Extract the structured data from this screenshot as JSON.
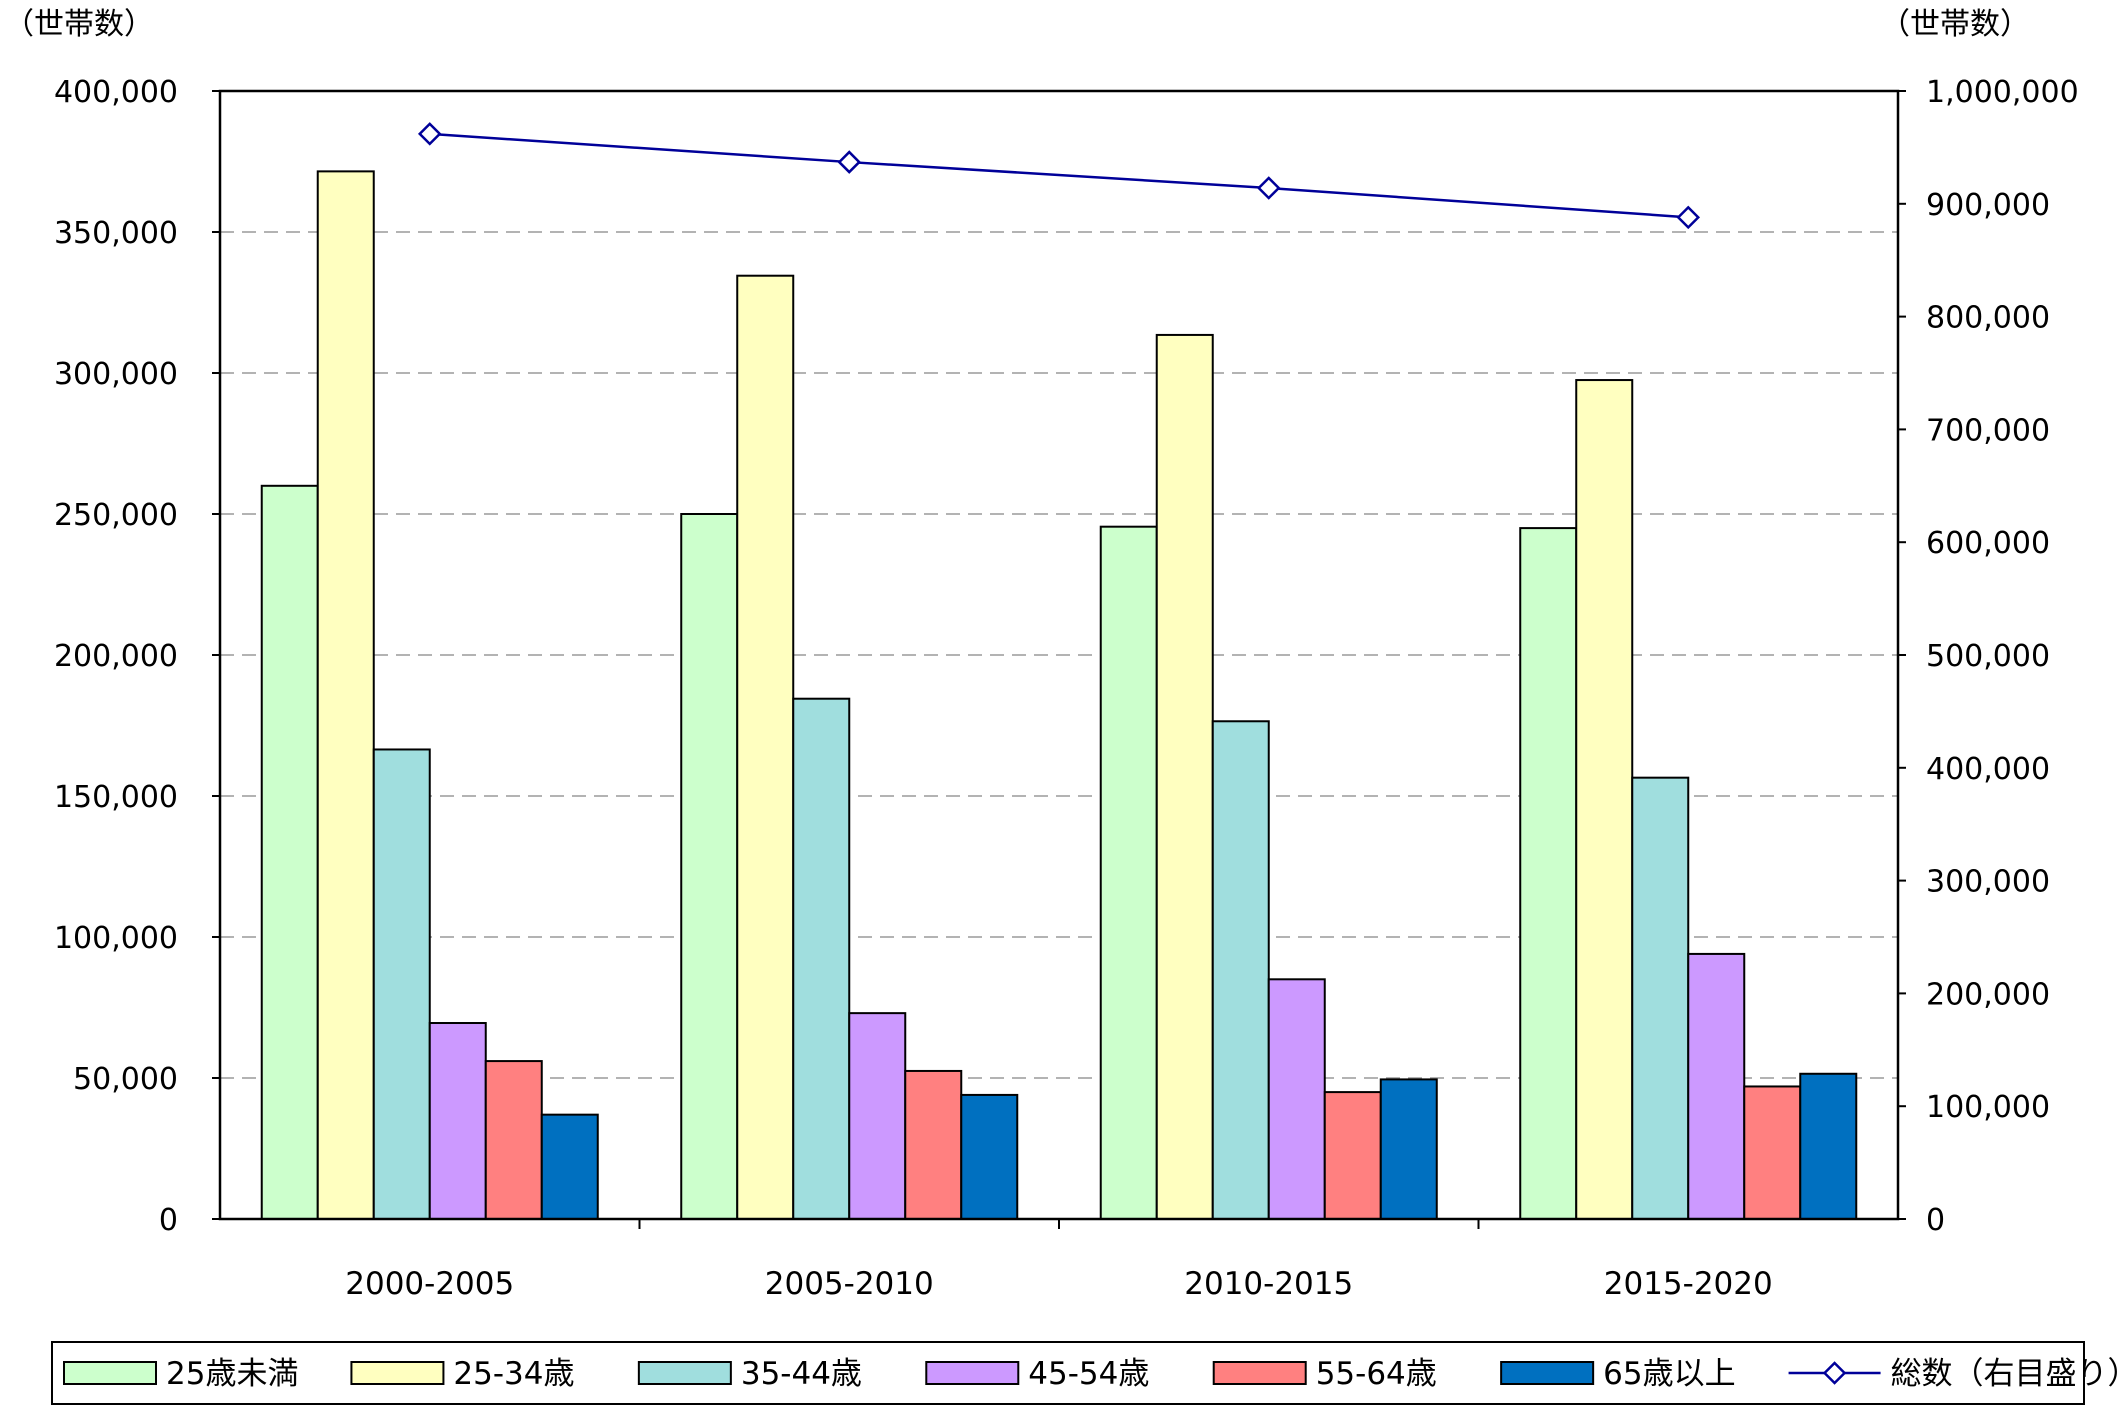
{
  "chart_data": {
    "type": "bar",
    "categories": [
      "2000-2005",
      "2005-2010",
      "2010-2015",
      "2015-2020"
    ],
    "left_axis": {
      "unit_label": "（世帯数）",
      "ylim": [
        0,
        400000
      ],
      "ticks": [
        "0",
        "50,000",
        "100,000",
        "150,000",
        "200,000",
        "250,000",
        "300,000",
        "350,000",
        "400,000"
      ]
    },
    "right_axis": {
      "unit_label": "（世帯数）",
      "ylim": [
        0,
        1000000
      ],
      "ticks": [
        "0",
        "100,000",
        "200,000",
        "300,000",
        "400,000",
        "500,000",
        "600,000",
        "700,000",
        "800,000",
        "900,000",
        "1,000,000"
      ]
    },
    "grid": true,
    "legend_position": "bottom",
    "series": [
      {
        "name": "25歳未満",
        "type": "bar",
        "axis": "left",
        "color": "#ccffcc",
        "values": [
          260000,
          250000,
          245500,
          245000
        ]
      },
      {
        "name": "25-34歳",
        "type": "bar",
        "axis": "left",
        "color": "#ffffc0",
        "values": [
          371500,
          334500,
          313500,
          297500
        ]
      },
      {
        "name": "35-44歳",
        "type": "bar",
        "axis": "left",
        "color": "#a0dede",
        "values": [
          166500,
          184500,
          176500,
          156500
        ]
      },
      {
        "name": "45-54歳",
        "type": "bar",
        "axis": "left",
        "color": "#cc99ff",
        "values": [
          69500,
          73000,
          85000,
          94000
        ]
      },
      {
        "name": "55-64歳",
        "type": "bar",
        "axis": "left",
        "color": "#ff8080",
        "values": [
          56000,
          52500,
          45000,
          47000
        ]
      },
      {
        "name": "65歳以上",
        "type": "bar",
        "axis": "left",
        "color": "#0070c0",
        "values": [
          37000,
          44000,
          49500,
          51500
        ]
      },
      {
        "name": "総数（右目盛り）",
        "type": "line",
        "axis": "right",
        "color": "#000099",
        "values": [
          962000,
          937000,
          914000,
          888000
        ]
      }
    ]
  }
}
